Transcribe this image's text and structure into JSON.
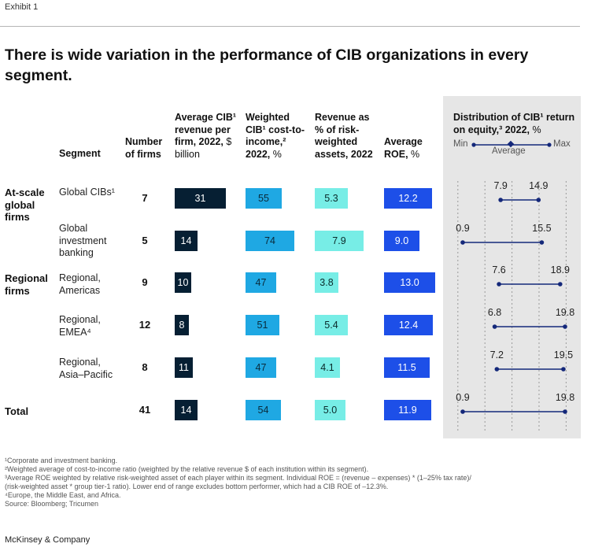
{
  "exhibit": "Exhibit 1",
  "title": "There is wide variation in the performance of CIB organizations in every segment.",
  "headers": {
    "segment": "Segment",
    "firms": "Number of firms",
    "revenue": "Average CIB¹ revenue per firm, 2022,",
    "revenue_unit": "$ billion",
    "cost": "Weighted CIB¹ cost-to-income,² 2022,",
    "cost_unit": "%",
    "rwa": "Revenue as % of risk-weighted assets, 2022",
    "roe": "Average ROE,",
    "roe_unit": "%",
    "dist": "Distribution of CIB¹ return on equity,³ 2022,",
    "dist_unit": "%",
    "legend_min": "Min",
    "legend_max": "Max",
    "legend_avg": "Average"
  },
  "groups": [
    {
      "label": "At-scale global firms"
    },
    {
      "label": "Regional firms"
    },
    {
      "label": "Total"
    }
  ],
  "chart_data": {
    "type": "table",
    "rows": [
      {
        "segment": "Global CIBs¹",
        "firms": "7",
        "revenue": "31",
        "cost": "55",
        "rwa": "5.3",
        "roe": "12.2",
        "min": "7.9",
        "max": "14.9"
      },
      {
        "segment": "Global investment banking",
        "firms": "5",
        "revenue": "14",
        "cost": "74",
        "rwa": "7.9",
        "roe": "9.0",
        "min": "0.9",
        "max": "15.5"
      },
      {
        "segment": "Regional, Americas",
        "firms": "9",
        "revenue": "10",
        "cost": "47",
        "rwa": "3.8",
        "roe": "13.0",
        "min": "7.6",
        "max": "18.9"
      },
      {
        "segment": "Regional, EMEA⁴",
        "firms": "12",
        "revenue": "8",
        "cost": "51",
        "rwa": "5.4",
        "roe": "12.4",
        "min": "6.8",
        "max": "19.8"
      },
      {
        "segment": "Regional, Asia–Pacific",
        "firms": "8",
        "revenue": "11",
        "cost": "47",
        "rwa": "4.1",
        "roe": "11.5",
        "min": "7.2",
        "max": "19.5"
      },
      {
        "segment": "",
        "firms": "41",
        "revenue": "14",
        "cost": "54",
        "rwa": "5.0",
        "roe": "11.9",
        "min": "0.9",
        "max": "19.8"
      }
    ],
    "colors": {
      "revenue": "#061f33",
      "cost": "#1fa8e3",
      "rwa": "#77ede6",
      "roe": "#1d4fe8",
      "range": "#14287a"
    }
  },
  "footnotes": [
    "¹Corporate and investment banking.",
    "²Weighted average of cost-to-income ratio (weighted by the relative revenue $ of each institution within its segment).",
    "³Average ROE weighted by relative risk-weighted asset of each player within its segment. Individual ROE = (revenue – expenses) * (1–25% tax rate)/",
    " (risk-weighted asset * group tier-1 ratio). Lower end of range excludes bottom performer, which had a CIB ROE of –12.3%.",
    "⁴Europe, the Middle East, and Africa.",
    " Source: Bloomberg; Tricumen"
  ],
  "brand": "McKinsey & Company"
}
